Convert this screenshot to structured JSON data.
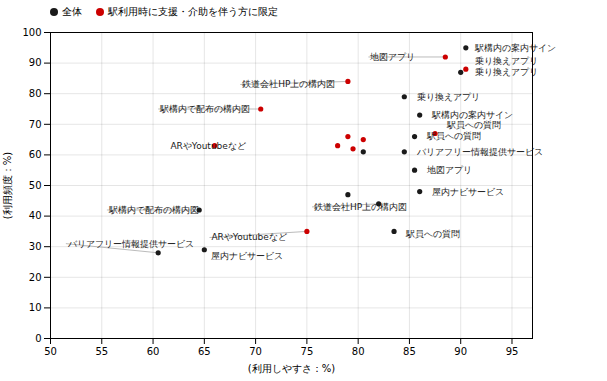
{
  "chart_data": {
    "type": "scatter",
    "xlabel": "(利用しやすさ：%)",
    "ylabel": "(利用頻度：%)",
    "xlim": [
      50,
      97
    ],
    "ylim": [
      0,
      100
    ],
    "xticks": [
      50,
      55,
      60,
      65,
      70,
      75,
      80,
      85,
      90,
      95
    ],
    "yticks": [
      0,
      10,
      20,
      30,
      40,
      50,
      60,
      70,
      80,
      90,
      100
    ],
    "grid": true,
    "legend": "upper left",
    "series": [
      {
        "name": "全体",
        "color": "#1a1a1a",
        "x": [
          90.5,
          90.0,
          84.5,
          86.0,
          85.5,
          84.5,
          85.5,
          86.0,
          79.0,
          80.5,
          82.0,
          83.5,
          64.5,
          65.0,
          60.5
        ],
        "values": [
          95,
          87,
          79,
          73,
          66,
          61,
          55,
          48,
          47,
          61,
          44,
          35,
          42,
          29,
          28
        ]
      },
      {
        "name": "駅利用時に支援・介助を伴う方に限定",
        "color": "#cc0000",
        "x": [
          88.5,
          90.5,
          87.5,
          79.0,
          80.5,
          78.0,
          79.5,
          70.5,
          79.0,
          66.0,
          75.0
        ],
        "values": [
          92,
          88,
          67,
          66,
          65,
          63,
          62,
          75,
          84,
          63,
          35
        ]
      }
    ],
    "annotations": [
      {
        "text": "駅構内の案内サイン",
        "x": 90.5,
        "y": 95,
        "text_x": 91.2,
        "text_y": 95,
        "arrow": false,
        "color": "#1a1a1a"
      },
      {
        "text": "乗り換えアプリ",
        "x": 90.0,
        "y": 87,
        "text_x": 91.2,
        "text_y": 87,
        "arrow": false,
        "color": "#1a1a1a"
      },
      {
        "text": "乗り換えアプリ",
        "x": 84.5,
        "y": 79,
        "text_x": 85.5,
        "text_y": 79,
        "arrow": false,
        "color": "#1a1a1a"
      },
      {
        "text": "駅構内の案内サイン",
        "x": 86.0,
        "y": 73,
        "text_x": 87.0,
        "text_y": 73,
        "arrow": false,
        "color": "#1a1a1a"
      },
      {
        "text": "駅員への質問",
        "x": 85.5,
        "y": 66,
        "text_x": 86.5,
        "text_y": 66,
        "arrow": false,
        "color": "#1a1a1a"
      },
      {
        "text": "バリアフリー情報提供サービス",
        "x": 84.5,
        "y": 61,
        "text_x": 85.5,
        "text_y": 61,
        "arrow": false,
        "color": "#1a1a1a"
      },
      {
        "text": "地図アプリ",
        "x": 85.5,
        "y": 55,
        "text_x": 86.5,
        "text_y": 55,
        "arrow": false,
        "color": "#1a1a1a"
      },
      {
        "text": "屋内ナビサービス",
        "x": 86.0,
        "y": 48,
        "text_x": 87.0,
        "text_y": 48,
        "arrow": false,
        "color": "#1a1a1a"
      },
      {
        "text": "鉄道会社HP上の構内図",
        "x": 82.0,
        "y": 44,
        "text_x": 75.5,
        "text_y": 43,
        "arrow": true,
        "color": "#1a1a1a"
      },
      {
        "text": "駅員への質問",
        "x": 83.5,
        "y": 35,
        "text_x": 84.5,
        "text_y": 34,
        "arrow": false,
        "color": "#1a1a1a"
      },
      {
        "text": "駅構内で配布の構内図",
        "x": 64.5,
        "y": 42,
        "text_x": 55.5,
        "text_y": 42,
        "arrow": true,
        "color": "#1a1a1a"
      },
      {
        "text": "屋内ナビサービス",
        "x": 65.0,
        "y": 29,
        "text_x": 65.5,
        "text_y": 27,
        "arrow": false,
        "color": "#1a1a1a"
      },
      {
        "text": "バリアフリー情報提供サービス",
        "x": 60.5,
        "y": 28,
        "text_x": 51.5,
        "text_y": 31,
        "arrow": true,
        "color": "#1a1a1a"
      },
      {
        "text": "地図アプリ",
        "x": 88.5,
        "y": 92,
        "text_x": 81.0,
        "text_y": 92,
        "arrow": true,
        "color": "#1a1a1a"
      },
      {
        "text": "乗り換えアプリ",
        "x": 90.5,
        "y": 88,
        "text_x": 91.2,
        "text_y": 88,
        "arrow": false,
        "color": "#1a1a1a"
      },
      {
        "text": "駅員への質問",
        "x": 87.5,
        "y": 67,
        "text_x": 88.5,
        "text_y": 67,
        "arrow": false,
        "color": "#1a1a1a"
      },
      {
        "text": "駅構内で配布の構内図",
        "x": 70.5,
        "y": 75,
        "text_x": 60.5,
        "text_y": 75,
        "arrow": true,
        "color": "#1a1a1a"
      },
      {
        "text": "鉄道会社HP上の構内図",
        "x": 79.0,
        "y": 84,
        "text_x": 68.5,
        "text_y": 83,
        "arrow": true,
        "color": "#1a1a1a"
      },
      {
        "text": "ARやYoutubeなど",
        "x": 66.0,
        "y": 63,
        "text_x": 61.5,
        "text_y": 63,
        "arrow": false,
        "color": "#1a1a1a"
      },
      {
        "text": "ARやYoutubeなど",
        "x": 75.0,
        "y": 35,
        "text_x": 65.5,
        "text_y": 33,
        "arrow": true,
        "color": "#1a1a1a"
      }
    ]
  }
}
